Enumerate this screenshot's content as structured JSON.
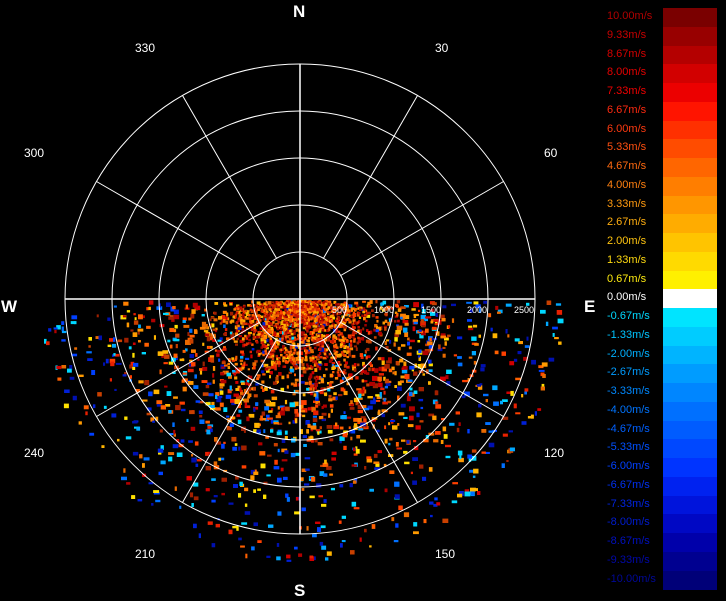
{
  "radar": {
    "compass": {
      "north": "N",
      "south": "S",
      "east": "E",
      "west": "W"
    },
    "bearings": [
      "330",
      "30",
      "300",
      "60",
      "240",
      "120",
      "210",
      "150"
    ],
    "range_labels": [
      "500",
      "1000",
      "1500",
      "2000",
      "2500"
    ]
  },
  "legend": {
    "items": [
      {
        "label": "10.00m/s",
        "color": "#7a0000",
        "text": "#b00000"
      },
      {
        "label": "9.33m/s",
        "color": "#980000",
        "text": "#c80000"
      },
      {
        "label": "8.67m/s",
        "color": "#b40000",
        "text": "#d60000"
      },
      {
        "label": "8.00m/s",
        "color": "#d20000",
        "text": "#e40000"
      },
      {
        "label": "7.33m/s",
        "color": "#ec0000",
        "text": "#f00000"
      },
      {
        "label": "6.67m/s",
        "color": "#ff1400",
        "text": "#ff2a10"
      },
      {
        "label": "6.00m/s",
        "color": "#ff3000",
        "text": "#ff3a10"
      },
      {
        "label": "5.33m/s",
        "color": "#ff4c00",
        "text": "#ff5010"
      },
      {
        "label": "4.67m/s",
        "color": "#ff6600",
        "text": "#ff6a10"
      },
      {
        "label": "4.00m/s",
        "color": "#ff7e00",
        "text": "#ff8010"
      },
      {
        "label": "3.33m/s",
        "color": "#ff9600",
        "text": "#ff9a10"
      },
      {
        "label": "2.67m/s",
        "color": "#ffac00",
        "text": "#ffae10"
      },
      {
        "label": "2.00m/s",
        "color": "#ffc400",
        "text": "#ffc410"
      },
      {
        "label": "1.33m/s",
        "color": "#ffda00",
        "text": "#ffda10"
      },
      {
        "label": "0.67m/s",
        "color": "#fff000",
        "text": "#ffec10"
      },
      {
        "label": "0.00m/s",
        "color": "#ffffff",
        "text": "#ffffff"
      },
      {
        "label": "-0.67m/s",
        "color": "#00e4ff",
        "text": "#00d8ff"
      },
      {
        "label": "-1.33m/s",
        "color": "#00ccff",
        "text": "#00c4ff"
      },
      {
        "label": "-2.00m/s",
        "color": "#00b4ff",
        "text": "#00b0ff"
      },
      {
        "label": "-2.67m/s",
        "color": "#009cff",
        "text": "#009cff"
      },
      {
        "label": "-3.33m/s",
        "color": "#0086ff",
        "text": "#0088ff"
      },
      {
        "label": "-4.00m/s",
        "color": "#0070ff",
        "text": "#0074ff"
      },
      {
        "label": "-4.67m/s",
        "color": "#005cff",
        "text": "#0060ff"
      },
      {
        "label": "-5.33m/s",
        "color": "#0048ff",
        "text": "#0050ff"
      },
      {
        "label": "-6.00m/s",
        "color": "#0034ff",
        "text": "#0040ff"
      },
      {
        "label": "-6.67m/s",
        "color": "#0022f0",
        "text": "#0030f0"
      },
      {
        "label": "-7.33m/s",
        "color": "#0014dc",
        "text": "#0024e0"
      },
      {
        "label": "-8.00m/s",
        "color": "#0008c4",
        "text": "#001cd0"
      },
      {
        "label": "-8.67m/s",
        "color": "#0000aa",
        "text": "#0010c0"
      },
      {
        "label": "-9.33m/s",
        "color": "#000090",
        "text": "#0008a8"
      },
      {
        "label": "-10.00m/s",
        "color": "#000078",
        "text": "#000898"
      }
    ]
  }
}
